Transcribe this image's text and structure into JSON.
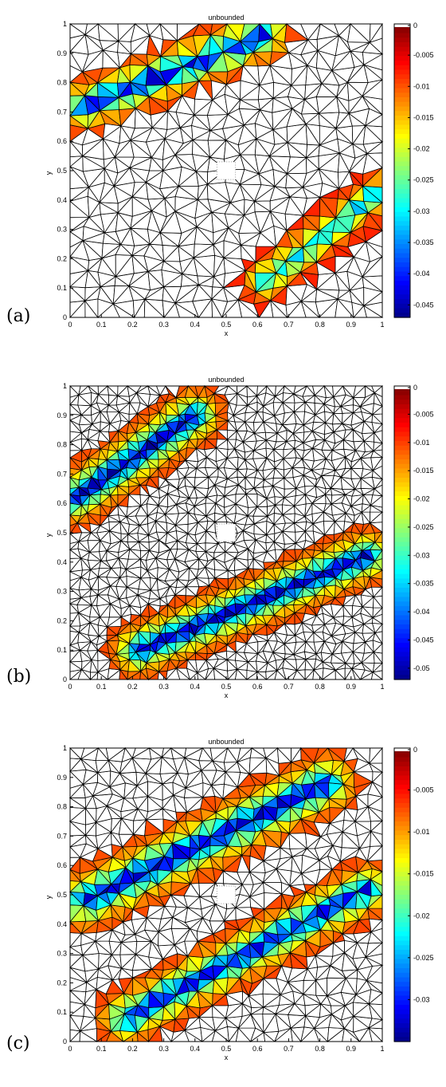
{
  "panels": [
    {
      "letter": "(a)"
    },
    {
      "letter": "(b)"
    },
    {
      "letter": "(c)"
    }
  ],
  "chart_data": [
    {
      "type": "heatmap",
      "title": "unbounded",
      "xlabel": "x",
      "ylabel": "y",
      "xlim": [
        0,
        1
      ],
      "ylim": [
        0,
        1
      ],
      "xticks": [
        "0",
        "0.1",
        "0.2",
        "0.3",
        "0.4",
        "0.5",
        "0.6",
        "0.7",
        "0.8",
        "0.9",
        "1"
      ],
      "yticks": [
        "0",
        "0.1",
        "0.2",
        "0.3",
        "0.4",
        "0.5",
        "0.6",
        "0.7",
        "0.8",
        "0.9",
        "1"
      ],
      "colorbar": {
        "min": -0.047,
        "max": 0,
        "ticks": [
          "0",
          "-0.005",
          "-0.01",
          "-0.015",
          "-0.02",
          "-0.025",
          "-0.03",
          "-0.035",
          "-0.04",
          "-0.045"
        ],
        "tick_values": [
          0,
          -0.005,
          -0.01,
          -0.015,
          -0.02,
          -0.025,
          -0.03,
          -0.035,
          -0.04,
          -0.045
        ]
      },
      "colormap": "jet",
      "mesh_resolution": 20,
      "bands": [
        {
          "x0": 0.05,
          "y0": 0.72,
          "x1": 0.62,
          "y1": 0.96,
          "width": 0.1,
          "peak": -0.046
        },
        {
          "x0": 0.62,
          "y0": 0.12,
          "x1": 0.98,
          "y1": 0.42,
          "width": 0.09,
          "peak": -0.033
        }
      ]
    },
    {
      "type": "heatmap",
      "title": "unbounded",
      "xlabel": "x",
      "ylabel": "y",
      "xlim": [
        0,
        1
      ],
      "ylim": [
        0,
        1
      ],
      "xticks": [
        "0",
        "0.1",
        "0.2",
        "0.3",
        "0.4",
        "0.5",
        "0.6",
        "0.7",
        "0.8",
        "0.9",
        "1"
      ],
      "yticks": [
        "0",
        "0.1",
        "0.2",
        "0.3",
        "0.4",
        "0.5",
        "0.6",
        "0.7",
        "0.8",
        "0.9",
        "1"
      ],
      "colorbar": {
        "min": -0.052,
        "max": 0,
        "ticks": [
          "0",
          "-0.005",
          "-0.01",
          "-0.015",
          "-0.02",
          "-0.025",
          "-0.03",
          "-0.035",
          "-0.04",
          "-0.045",
          "-0.05"
        ],
        "tick_values": [
          0,
          -0.005,
          -0.01,
          -0.015,
          -0.02,
          -0.025,
          -0.03,
          -0.035,
          -0.04,
          -0.045,
          -0.05
        ]
      },
      "colormap": "jet",
      "mesh_resolution": 32,
      "bands": [
        {
          "x0": 0.02,
          "y0": 0.62,
          "x1": 0.4,
          "y1": 0.9,
          "width": 0.11,
          "peak": -0.052
        },
        {
          "x0": 0.22,
          "y0": 0.1,
          "x1": 0.95,
          "y1": 0.42,
          "width": 0.11,
          "peak": -0.052
        }
      ]
    },
    {
      "type": "heatmap",
      "title": "unbounded",
      "xlabel": "x",
      "ylabel": "y",
      "xlim": [
        0,
        1
      ],
      "ylim": [
        0,
        1
      ],
      "xticks": [
        "0",
        "0.1",
        "0.2",
        "0.3",
        "0.4",
        "0.5",
        "0.6",
        "0.7",
        "0.8",
        "0.9",
        "1"
      ],
      "yticks": [
        "0",
        "0.1",
        "0.2",
        "0.3",
        "0.4",
        "0.5",
        "0.6",
        "0.7",
        "0.8",
        "0.9",
        "1"
      ],
      "colorbar": {
        "min": -0.035,
        "max": 0,
        "ticks": [
          "0",
          "-0.005",
          "-0.01",
          "-0.015",
          "-0.02",
          "-0.025",
          "-0.03"
        ],
        "tick_values": [
          0,
          -0.005,
          -0.01,
          -0.015,
          -0.02,
          -0.025,
          -0.03
        ]
      },
      "colormap": "jet",
      "mesh_resolution": 24,
      "bands": [
        {
          "x0": 0.05,
          "y0": 0.48,
          "x1": 0.82,
          "y1": 0.88,
          "width": 0.12,
          "peak": -0.035
        },
        {
          "x0": 0.18,
          "y0": 0.08,
          "x1": 0.95,
          "y1": 0.52,
          "width": 0.11,
          "peak": -0.033
        }
      ]
    }
  ]
}
